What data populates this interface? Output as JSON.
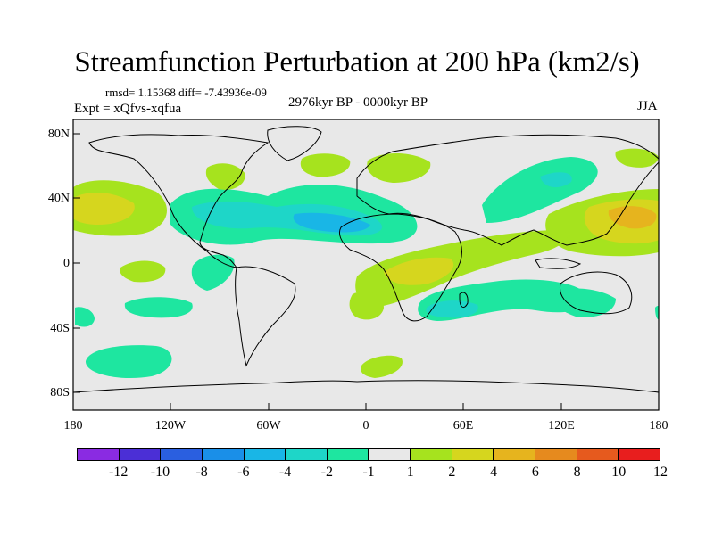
{
  "title": "Streamfunction Perturbation at 200 hPa (km2/s)",
  "stats": "rmsd= 1.15368 diff= -7.43936e-09",
  "expt": "Expt = xQfvs-xqfua",
  "period": "2976kyr BP - 0000kyr BP",
  "season": "JJA",
  "lat_labels": [
    "80N",
    "40N",
    "0",
    "40S",
    "80S"
  ],
  "lon_labels": [
    "180",
    "120W",
    "60W",
    "0",
    "60E",
    "120E",
    "180"
  ],
  "colorbar": {
    "labels": [
      "-12",
      "-10",
      "-8",
      "-6",
      "-4",
      "-2",
      "-1",
      "1",
      "2",
      "4",
      "6",
      "8",
      "10",
      "12"
    ],
    "colors": [
      "#8a2be2",
      "#4b2fd6",
      "#2a5fe0",
      "#1a8fe8",
      "#19b6e6",
      "#1ed6c8",
      "#1ee6a0",
      "#e8e8e8",
      "#a6e31e",
      "#d6d61e",
      "#e6b41e",
      "#e68a1e",
      "#e65a1e",
      "#e81e1e"
    ]
  },
  "colors": {
    "land_outline": "#000000",
    "background": "#e8e8e8"
  }
}
